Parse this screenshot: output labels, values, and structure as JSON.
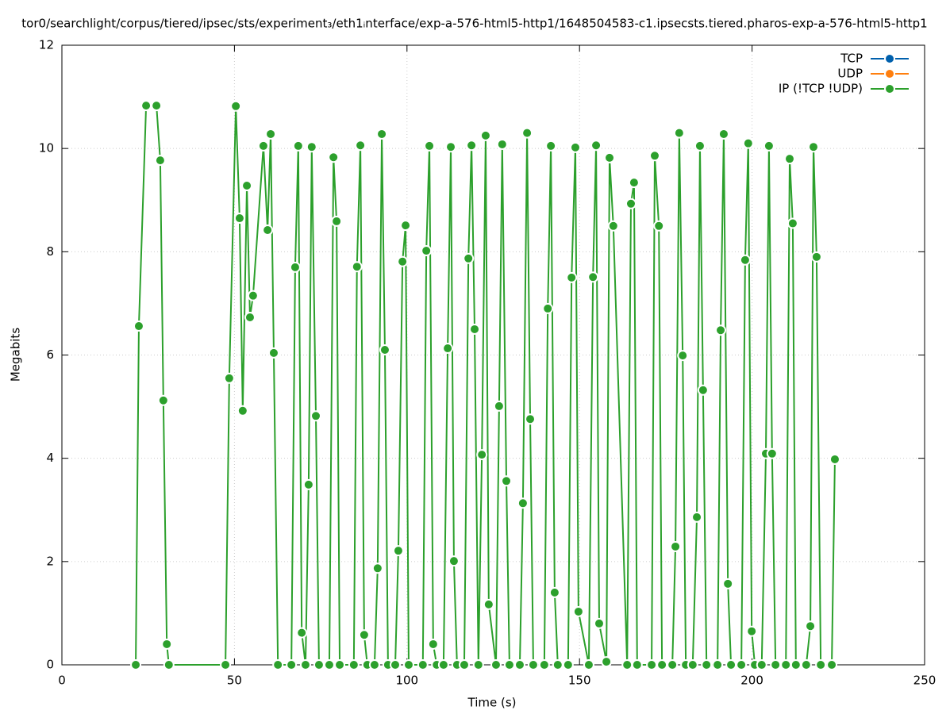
{
  "chart_data": {
    "type": "line",
    "title": "tor0/searchlight/corpus/tiered/ipsec/sts/experiment₃/eth1ᵢnterface/exp-a-576-html5-http1/1648504583-c1.ipsecsts.tiered.pharos-exp-a-576-html5-http1",
    "xlabel": "Time (s)",
    "ylabel": "Megabits",
    "xlim": [
      0,
      250
    ],
    "xticks": [
      0,
      50,
      100,
      150,
      200,
      250
    ],
    "ylim": [
      0,
      12
    ],
    "yticks": [
      0,
      2,
      4,
      6,
      8,
      10,
      12
    ],
    "grid": true,
    "legend": "top right",
    "series": [
      {
        "name": "TCP",
        "color": "#0060ad",
        "x": [],
        "values": []
      },
      {
        "name": "UDP",
        "color": "#ff7f0e",
        "x": [],
        "values": []
      },
      {
        "name": "IP (!TCP  !UDP)",
        "color": "#2ca02c",
        "x": [
          21.4,
          22.3,
          24.4,
          27.4,
          28.5,
          29.4,
          30.4,
          31.0,
          47.4,
          48.5,
          50.4,
          51.5,
          52.4,
          53.6,
          54.5,
          55.4,
          58.4,
          59.6,
          60.5,
          61.4,
          62.6,
          66.5,
          67.6,
          68.5,
          69.5,
          70.6,
          71.5,
          72.4,
          73.6,
          74.5,
          77.5,
          78.7,
          79.6,
          80.5,
          84.6,
          85.5,
          86.5,
          87.6,
          88.5,
          90.6,
          91.5,
          92.7,
          93.6,
          94.5,
          96.6,
          97.5,
          98.7,
          99.6,
          100.5,
          104.6,
          105.6,
          106.5,
          107.6,
          108.6,
          110.6,
          111.8,
          112.7,
          113.6,
          114.5,
          116.6,
          117.8,
          118.7,
          119.6,
          120.7,
          121.7,
          122.8,
          123.7,
          125.8,
          126.7,
          127.6,
          128.8,
          129.7,
          132.7,
          133.6,
          134.8,
          135.7,
          136.6,
          139.8,
          140.8,
          141.7,
          142.8,
          143.7,
          146.7,
          147.7,
          148.8,
          149.7,
          152.7,
          153.9,
          154.8,
          155.7,
          157.8,
          158.7,
          159.8,
          163.8,
          164.9,
          165.8,
          166.7,
          170.9,
          171.8,
          173.0,
          173.9,
          176.9,
          177.8,
          178.9,
          179.9,
          180.8,
          182.8,
          184.0,
          184.9,
          185.8,
          186.8,
          190.0,
          190.9,
          191.8,
          193.0,
          193.9,
          196.9,
          198.0,
          198.9,
          199.9,
          200.8,
          202.8,
          204.0,
          204.9,
          205.8,
          206.8,
          209.8,
          210.9,
          211.8,
          212.7,
          215.7,
          216.9,
          217.8,
          218.7,
          219.9,
          223.1,
          224.0
        ],
        "values": [
          0,
          6.56,
          10.83,
          10.83,
          9.77,
          5.12,
          0.4,
          0,
          0,
          5.55,
          10.82,
          8.65,
          4.92,
          9.28,
          6.73,
          7.15,
          10.05,
          8.42,
          10.28,
          6.04,
          0,
          0,
          7.7,
          10.05,
          0.62,
          0,
          3.49,
          10.03,
          4.82,
          0,
          0,
          9.83,
          8.59,
          0,
          0,
          7.71,
          10.06,
          0.58,
          0,
          0,
          1.87,
          10.28,
          6.1,
          0,
          0,
          2.21,
          7.81,
          8.51,
          0,
          0,
          8.02,
          10.05,
          0.4,
          0,
          0,
          6.13,
          10.03,
          2.01,
          0,
          0,
          7.87,
          10.06,
          6.5,
          0,
          4.07,
          10.25,
          1.17,
          0,
          5.01,
          10.08,
          3.56,
          0,
          0,
          3.13,
          10.3,
          4.76,
          0,
          0,
          6.9,
          10.05,
          1.4,
          0,
          0,
          7.5,
          10.02,
          1.03,
          0,
          7.51,
          10.06,
          0.8,
          0.06,
          9.82,
          8.5,
          0,
          8.93,
          9.34,
          0,
          0,
          9.86,
          8.5,
          0,
          0,
          2.29,
          10.3,
          5.99,
          0,
          0,
          2.86,
          10.05,
          5.32,
          0,
          0,
          6.48,
          10.28,
          1.57,
          0,
          0,
          7.84,
          10.1,
          0.65,
          0,
          0,
          4.09,
          10.05,
          4.09,
          0,
          0,
          9.8,
          8.55,
          0,
          0,
          0.75,
          10.03,
          7.9,
          0,
          0,
          3.98
        ]
      }
    ]
  }
}
